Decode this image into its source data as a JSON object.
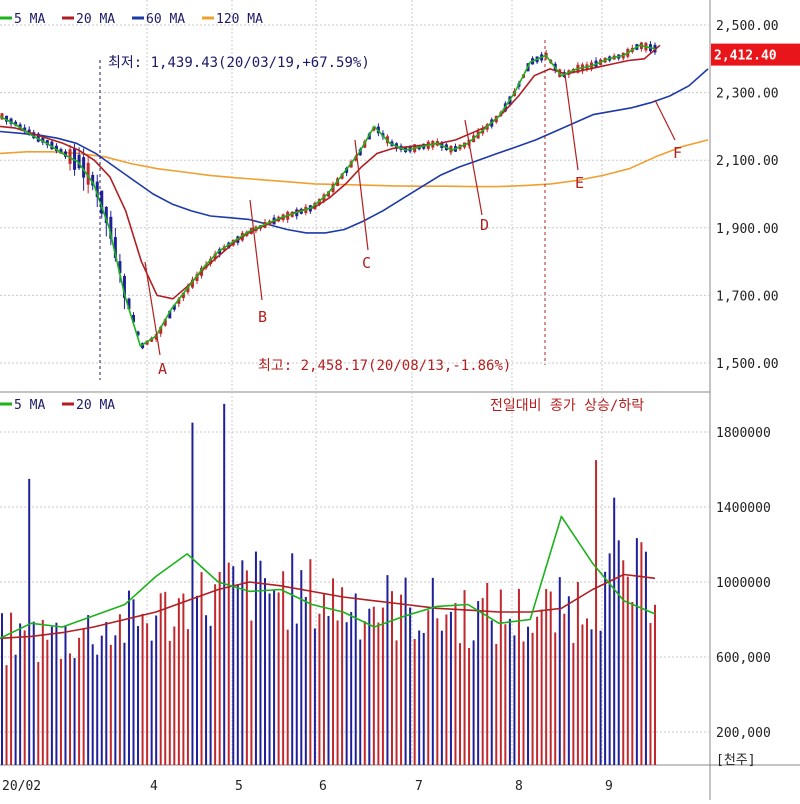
{
  "colors": {
    "up": "#c0282d",
    "down": "#1f1f9a",
    "ma5": "#1bb21b",
    "ma20": "#b01e23",
    "ma60": "#1d3aa8",
    "ma120": "#f0a030",
    "grid": "#c9c9c9",
    "axis_text": "#222222",
    "annot_red": "#b42020",
    "annot_blue": "#1a1a6a",
    "last_price_bg": "#e8161a"
  },
  "legend_price": [
    {
      "label": "5 MA",
      "color_key": "ma5"
    },
    {
      "label": "20 MA",
      "color_key": "ma20"
    },
    {
      "label": "60 MA",
      "color_key": "ma60"
    },
    {
      "label": "120 MA",
      "color_key": "ma120"
    }
  ],
  "legend_volume": [
    {
      "label": "5 MA",
      "color_key": "ma5"
    },
    {
      "label": "20 MA",
      "color_key": "ma20"
    }
  ],
  "price_axis_labels": [
    "2,500.00",
    "2,300.00",
    "2,100.00",
    "1,900.00",
    "1,700.00",
    "1,500.00"
  ],
  "last_price_label": "2,412.40",
  "volume_axis_labels": [
    "1800000",
    "1400000",
    "1000000",
    "600,000",
    "200,000"
  ],
  "volume_unit_label": "[천주]",
  "x_axis_labels": [
    "20/02",
    "4",
    "5",
    "6",
    "7",
    "8",
    "9"
  ],
  "low_annotation": "최저: 1,439.43(20/03/19,+67.59%)",
  "high_annotation": "최고: 2,458.17(20/08/13,-1.86%)",
  "volume_note": "전일대비 종가 상승/하락",
  "markers": [
    "A",
    "B",
    "C",
    "D",
    "E",
    "F"
  ],
  "chart_data": {
    "type": "candlestick",
    "price_axis": {
      "min": 1400,
      "max": 2520,
      "ticks": [
        2500,
        2300,
        2100,
        1900,
        1700,
        1500
      ]
    },
    "volume_axis": {
      "min": 0,
      "max": 2050000,
      "ticks": [
        1800000,
        1400000,
        1000000,
        600000,
        200000
      ]
    },
    "price_series": {
      "ma5": [
        2230,
        2205,
        2175,
        2150,
        2120,
        2095,
        2030,
        1900,
        1700,
        1550,
        1580,
        1660,
        1720,
        1780,
        1830,
        1860,
        1890,
        1910,
        1930,
        1945,
        1960,
        2000,
        2060,
        2120,
        2200,
        2150,
        2130,
        2140,
        2150,
        2130,
        2150,
        2190,
        2230,
        2300,
        2390,
        2410,
        2350,
        2370,
        2380,
        2400,
        2410,
        2440,
        2430
      ],
      "ma20": [
        2200,
        2195,
        2180,
        2165,
        2150,
        2130,
        2100,
        2050,
        1950,
        1800,
        1700,
        1690,
        1730,
        1780,
        1820,
        1860,
        1890,
        1910,
        1930,
        1950,
        1960,
        1990,
        2030,
        2080,
        2120,
        2135,
        2140,
        2145,
        2150,
        2160,
        2180,
        2200,
        2240,
        2290,
        2350,
        2370,
        2355,
        2365,
        2375,
        2385,
        2395,
        2400,
        2440
      ],
      "ma60": [
        2185,
        2180,
        2175,
        2165,
        2150,
        2120,
        2080,
        2040,
        2000,
        1970,
        1950,
        1935,
        1930,
        1925,
        1910,
        1895,
        1885,
        1885,
        1895,
        1920,
        1950,
        1985,
        2020,
        2055,
        2080,
        2100,
        2120,
        2140,
        2160,
        2185,
        2210,
        2235,
        2245,
        2255,
        2270,
        2290,
        2320,
        2370
      ],
      "ma120": [
        2120,
        2125,
        2125,
        2120,
        2110,
        2090,
        2075,
        2065,
        2055,
        2048,
        2042,
        2036,
        2030,
        2028,
        2026,
        2024,
        2023,
        2023,
        2022,
        2022,
        2025,
        2030,
        2040,
        2055,
        2075,
        2110,
        2140,
        2160
      ]
    },
    "volume_series": {
      "ma5": [
        700000,
        780000,
        760000,
        820000,
        880000,
        1030000,
        1150000,
        1000000,
        950000,
        960000,
        880000,
        840000,
        760000,
        820000,
        870000,
        880000,
        780000,
        800000,
        1350000,
        1100000,
        900000,
        830000
      ],
      "ma20": [
        700000,
        710000,
        730000,
        760000,
        800000,
        840000,
        900000,
        960000,
        1000000,
        980000,
        950000,
        920000,
        900000,
        880000,
        860000,
        850000,
        840000,
        840000,
        860000,
        960000,
        1040000,
        1020000
      ]
    }
  }
}
